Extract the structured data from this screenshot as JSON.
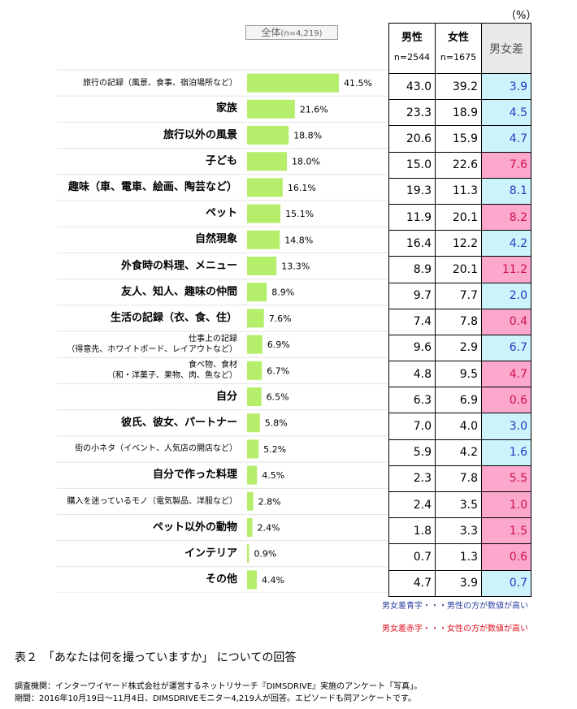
{
  "header": {
    "unit": "（%）",
    "overall_label": "全体",
    "overall_n": "(n=4,219)",
    "male_label": "男性",
    "male_n": "n=2544",
    "female_label": "女性",
    "female_n": "n=1675",
    "diff_label": "男女差"
  },
  "colors": {
    "bar": "#b5ee6a",
    "blue_bg": "#ccf2fc",
    "blue_text": "#1f3fbf",
    "red_bg": "#fba8cc",
    "red_text": "#d01050"
  },
  "chart_data": {
    "type": "bar",
    "orientation": "horizontal",
    "title": "",
    "series": [
      {
        "name": "全体(n=4,219)",
        "unit": "%"
      }
    ],
    "categories": [
      {
        "label": [
          "旅行の記録（風景、食事、宿泊場所など）"
        ],
        "small": true,
        "value": 41.5,
        "display": "41.5%",
        "male": "43.0",
        "female": "39.2",
        "diff": "3.9",
        "diff_color": "blue"
      },
      {
        "label": [
          "家族"
        ],
        "small": false,
        "value": 21.6,
        "display": "21.6%",
        "male": "23.3",
        "female": "18.9",
        "diff": "4.5",
        "diff_color": "blue"
      },
      {
        "label": [
          "旅行以外の風景"
        ],
        "small": false,
        "value": 18.8,
        "display": "18.8%",
        "male": "20.6",
        "female": "15.9",
        "diff": "4.7",
        "diff_color": "blue"
      },
      {
        "label": [
          "子ども"
        ],
        "small": false,
        "value": 18.0,
        "display": "18.0%",
        "male": "15.0",
        "female": "22.6",
        "diff": "7.6",
        "diff_color": "red"
      },
      {
        "label": [
          "趣味（車、電車、絵画、陶芸など）"
        ],
        "small": false,
        "value": 16.1,
        "display": "16.1%",
        "male": "19.3",
        "female": "11.3",
        "diff": "8.1",
        "diff_color": "blue"
      },
      {
        "label": [
          "ペット"
        ],
        "small": false,
        "value": 15.1,
        "display": "15.1%",
        "male": "11.9",
        "female": "20.1",
        "diff": "8.2",
        "diff_color": "red"
      },
      {
        "label": [
          "自然現象"
        ],
        "small": false,
        "value": 14.8,
        "display": "14.8%",
        "male": "16.4",
        "female": "12.2",
        "diff": "4.2",
        "diff_color": "blue"
      },
      {
        "label": [
          "外食時の料理、メニュー"
        ],
        "small": false,
        "value": 13.3,
        "display": "13.3%",
        "male": "8.9",
        "female": "20.1",
        "diff": "11.2",
        "diff_color": "red"
      },
      {
        "label": [
          "友人、知人、趣味の仲間"
        ],
        "small": false,
        "value": 8.9,
        "display": "8.9%",
        "male": "9.7",
        "female": "7.7",
        "diff": "2.0",
        "diff_color": "blue"
      },
      {
        "label": [
          "生活の記録（衣、食、住）"
        ],
        "small": false,
        "value": 7.6,
        "display": "7.6%",
        "male": "7.4",
        "female": "7.8",
        "diff": "0.4",
        "diff_color": "red"
      },
      {
        "label": [
          "仕事上の記録",
          "（得意先、ホワイトボード、レイアウトなど）"
        ],
        "small": true,
        "value": 6.9,
        "display": "6.9%",
        "male": "9.6",
        "female": "2.9",
        "diff": "6.7",
        "diff_color": "blue"
      },
      {
        "label": [
          "食べ物、食材",
          "（和・洋菓子、果物、肉、魚など）"
        ],
        "small": true,
        "value": 6.7,
        "display": "6.7%",
        "male": "4.8",
        "female": "9.5",
        "diff": "4.7",
        "diff_color": "red"
      },
      {
        "label": [
          "自分"
        ],
        "small": false,
        "value": 6.5,
        "display": "6.5%",
        "male": "6.3",
        "female": "6.9",
        "diff": "0.6",
        "diff_color": "red"
      },
      {
        "label": [
          "彼氏、彼女、パートナー"
        ],
        "small": false,
        "value": 5.8,
        "display": "5.8%",
        "male": "7.0",
        "female": "4.0",
        "diff": "3.0",
        "diff_color": "blue"
      },
      {
        "label": [
          "街の小ネタ（イベント、人気店の開店など）"
        ],
        "small": true,
        "value": 5.2,
        "display": "5.2%",
        "male": "5.9",
        "female": "4.2",
        "diff": "1.6",
        "diff_color": "blue"
      },
      {
        "label": [
          "自分で作った料理"
        ],
        "small": false,
        "value": 4.5,
        "display": "4.5%",
        "male": "2.3",
        "female": "7.8",
        "diff": "5.5",
        "diff_color": "red"
      },
      {
        "label": [
          "購入を迷っているモノ（電気製品、洋服など）"
        ],
        "small": true,
        "value": 2.8,
        "display": "2.8%",
        "male": "2.4",
        "female": "3.5",
        "diff": "1.0",
        "diff_color": "red"
      },
      {
        "label": [
          "ペット以外の動物"
        ],
        "small": false,
        "value": 2.4,
        "display": "2.4%",
        "male": "1.8",
        "female": "3.3",
        "diff": "1.5",
        "diff_color": "red"
      },
      {
        "label": [
          "インテリア"
        ],
        "small": false,
        "value": 0.9,
        "display": "0.9%",
        "male": "0.7",
        "female": "1.3",
        "diff": "0.6",
        "diff_color": "red"
      },
      {
        "label": [
          "その他"
        ],
        "small": false,
        "value": 4.4,
        "display": "4.4%",
        "male": "4.7",
        "female": "3.9",
        "diff": "0.7",
        "diff_color": "blue"
      }
    ],
    "xlim": [
      0,
      50
    ],
    "grid": false,
    "legend": "top"
  },
  "legend": {
    "blue": "男女差青字・・・男性の方が数値が高い",
    "red": "男女差赤字・・・女性の方が数値が高い"
  },
  "caption": "表２　「あなたは何を撮っていますか」 についての回答",
  "notes": [
    "調査機関：インターワイヤード株式会社が運営するネットリサーチ『DIMSDRIVE』実施のアンケート「写真」。",
    "期間：2016年10月19日～11月4日、DIMSDRIVEモニター4,219人が回答。エピソードも同アンケートです。"
  ]
}
